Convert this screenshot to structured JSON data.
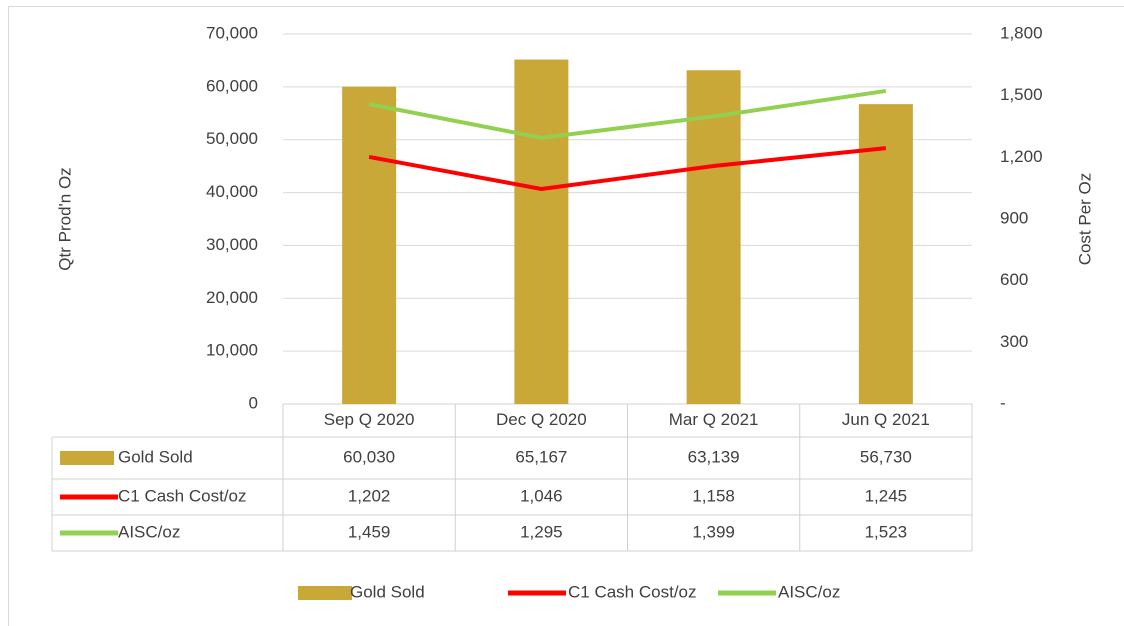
{
  "chart_data": {
    "type": "bar_line",
    "y_label": "Qtr Prod'n Oz",
    "y2_label": "Cost Per Oz",
    "categories": [
      "Sep Q 2020",
      "Dec Q 2020",
      "Mar Q 2021",
      "Jun Q 2021"
    ],
    "series": [
      {
        "name": "Gold Sold",
        "color": "#c9a838",
        "type": "bar",
        "values": [
          60030,
          65167,
          63139,
          56730
        ],
        "value_labels": [
          "60,030",
          "65,167",
          "63,139",
          "56,730"
        ]
      },
      {
        "name": "C1 Cash Cost/oz",
        "color": "#ff0000",
        "type": "line",
        "axis": "y2",
        "values": [
          1202,
          1046,
          1158,
          1245
        ],
        "value_labels": [
          "1,202",
          "1,046",
          "1,158",
          "1,245"
        ]
      },
      {
        "name": "AISC/oz",
        "color": "#92d050",
        "type": "line",
        "axis": "y2",
        "values": [
          1459,
          1295,
          1399,
          1523
        ],
        "value_labels": [
          "1,459",
          "1,295",
          "1,399",
          "1,523"
        ]
      }
    ],
    "ylim": [
      0,
      70000
    ],
    "yticks": [
      0,
      {
        "value": 10000,
        "label": "10,000"
      },
      {
        "value": 20000,
        "label": "20,000"
      },
      {
        "value": 30000,
        "label": "30,000"
      },
      {
        "value": 40000,
        "label": "40,000"
      },
      {
        "value": 50000,
        "label": "50,000"
      },
      {
        "value": 60000,
        "label": "60,000"
      },
      {
        "value": 70000,
        "label": "70,000"
      }
    ],
    "y2lim": [
      0,
      1800
    ],
    "y2ticks": [
      {
        "value": 0,
        "label": "-"
      },
      300,
      600,
      900,
      {
        "value": 1200,
        "label": "1,200"
      },
      {
        "value": 1500,
        "label": "1,500"
      },
      {
        "value": 1800,
        "label": "1,800"
      }
    ],
    "grid": true,
    "legend": "bottom",
    "data_table": true
  }
}
